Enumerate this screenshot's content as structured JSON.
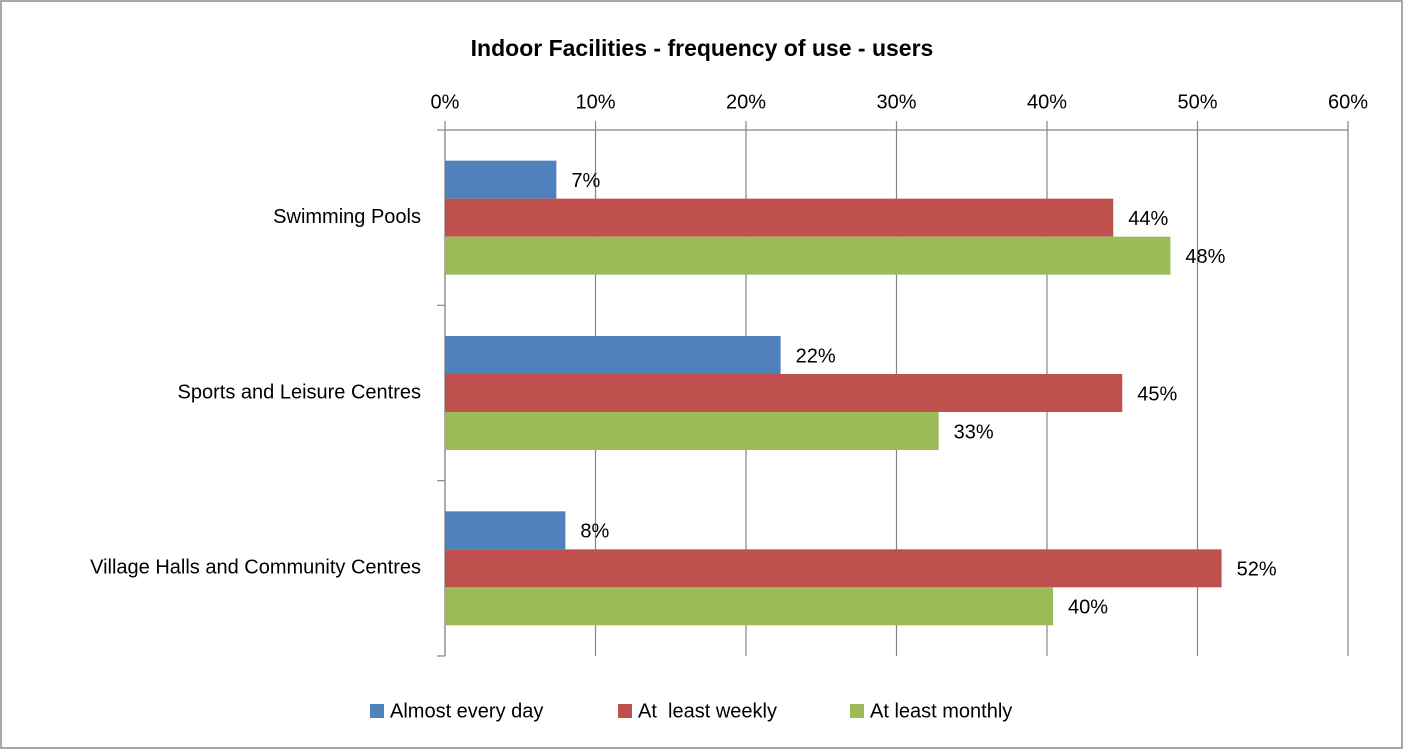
{
  "chart_data": {
    "type": "bar",
    "orientation": "horizontal",
    "title": "Indoor Facilities - frequency of use - users",
    "categories": [
      "Swimming Pools",
      "Sports and Leisure Centres",
      "Village Halls and Community Centres"
    ],
    "series": [
      {
        "name": "Almost every day",
        "color": "#4f81bd",
        "values": [
          7.4,
          22.3,
          8.0
        ],
        "value_labels": [
          "7%",
          "22%",
          "8%"
        ]
      },
      {
        "name": "At  least weekly",
        "color": "#c0504d",
        "values": [
          44.4,
          45.0,
          51.6
        ],
        "value_labels": [
          "44%",
          "45%",
          "52%"
        ]
      },
      {
        "name": "At least monthly",
        "color": "#9bbb59",
        "values": [
          48.2,
          32.8,
          40.4
        ],
        "value_labels": [
          "48%",
          "33%",
          "40%"
        ]
      }
    ],
    "xlim": [
      0,
      60
    ],
    "xticks": [
      {
        "value": 0,
        "label": "0%"
      },
      {
        "value": 10,
        "label": "10%"
      },
      {
        "value": 20,
        "label": "20%"
      },
      {
        "value": 30,
        "label": "30%"
      },
      {
        "value": 40,
        "label": "40%"
      },
      {
        "value": 50,
        "label": "50%"
      },
      {
        "value": 60,
        "label": "60%"
      }
    ],
    "grid": true,
    "legend": "bottom"
  }
}
